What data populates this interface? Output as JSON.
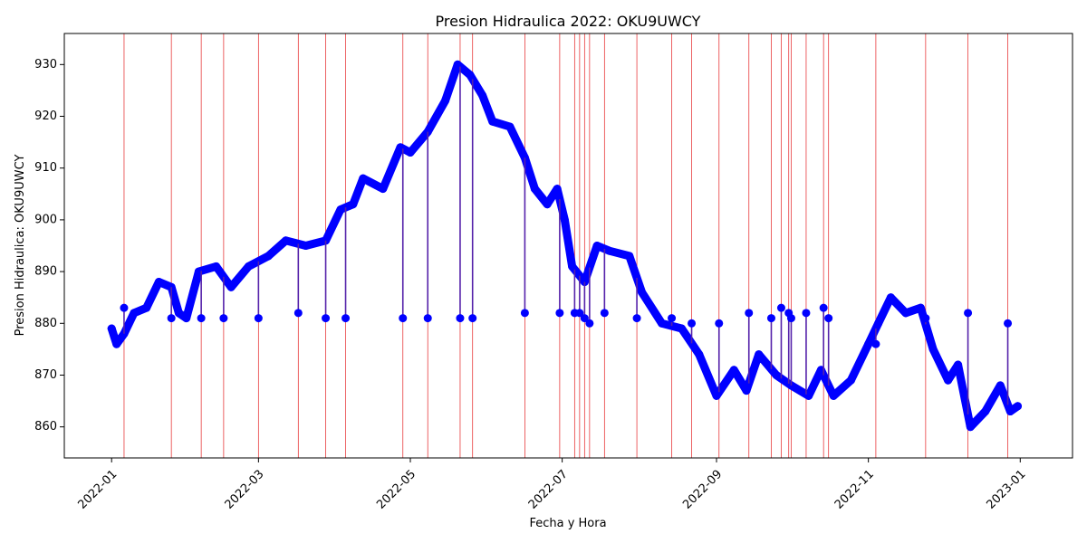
{
  "chart_data": {
    "type": "line",
    "title": "Presion Hidraulica 2022: OKU9UWCY",
    "xlabel": "Fecha y Hora",
    "ylabel": "Presion Hidraulica: OKU9UWCY",
    "xlim": [
      "2021-12-13",
      "2023-01-22"
    ],
    "ylim": [
      854,
      936
    ],
    "x_ticks": [
      "2022-01",
      "2022-03",
      "2022-05",
      "2022-07",
      "2022-09",
      "2022-11",
      "2023-01"
    ],
    "y_ticks": [
      860,
      870,
      880,
      890,
      900,
      910,
      920,
      930
    ],
    "grid": false,
    "series": [
      {
        "color": "#0000ff",
        "marker": "circle",
        "points": [
          [
            "2022-01-01",
            879
          ],
          [
            "2022-01-03",
            876
          ],
          [
            "2022-01-06",
            878
          ],
          [
            "2022-01-10",
            882
          ],
          [
            "2022-01-15",
            883
          ],
          [
            "2022-01-20",
            888
          ],
          [
            "2022-01-25",
            887
          ],
          [
            "2022-01-28",
            882
          ],
          [
            "2022-01-31",
            881
          ],
          [
            "2022-02-05",
            890
          ],
          [
            "2022-02-12",
            891
          ],
          [
            "2022-02-18",
            887
          ],
          [
            "2022-02-25",
            891
          ],
          [
            "2022-03-05",
            893
          ],
          [
            "2022-03-12",
            896
          ],
          [
            "2022-03-20",
            895
          ],
          [
            "2022-03-28",
            896
          ],
          [
            "2022-04-03",
            902
          ],
          [
            "2022-04-08",
            903
          ],
          [
            "2022-04-12",
            908
          ],
          [
            "2022-04-20",
            906
          ],
          [
            "2022-04-27",
            914
          ],
          [
            "2022-05-01",
            913
          ],
          [
            "2022-05-08",
            917
          ],
          [
            "2022-05-15",
            923
          ],
          [
            "2022-05-20",
            930
          ],
          [
            "2022-05-25",
            928
          ],
          [
            "2022-05-30",
            924
          ],
          [
            "2022-06-03",
            919
          ],
          [
            "2022-06-10",
            918
          ],
          [
            "2022-06-16",
            912
          ],
          [
            "2022-06-20",
            906
          ],
          [
            "2022-06-25",
            903
          ],
          [
            "2022-06-29",
            906
          ],
          [
            "2022-07-02",
            900
          ],
          [
            "2022-07-05",
            891
          ],
          [
            "2022-07-10",
            888
          ],
          [
            "2022-07-15",
            895
          ],
          [
            "2022-07-20",
            894
          ],
          [
            "2022-07-28",
            893
          ],
          [
            "2022-08-02",
            886
          ],
          [
            "2022-08-10",
            880
          ],
          [
            "2022-08-18",
            879
          ],
          [
            "2022-08-25",
            874
          ],
          [
            "2022-09-01",
            866
          ],
          [
            "2022-09-08",
            871
          ],
          [
            "2022-09-13",
            867
          ],
          [
            "2022-09-18",
            874
          ],
          [
            "2022-09-25",
            870
          ],
          [
            "2022-10-01",
            868
          ],
          [
            "2022-10-08",
            866
          ],
          [
            "2022-10-13",
            871
          ],
          [
            "2022-10-18",
            866
          ],
          [
            "2022-10-25",
            869
          ],
          [
            "2022-11-01",
            876
          ],
          [
            "2022-11-05",
            880
          ],
          [
            "2022-11-10",
            885
          ],
          [
            "2022-11-16",
            882
          ],
          [
            "2022-11-22",
            883
          ],
          [
            "2022-11-27",
            875
          ],
          [
            "2022-12-03",
            869
          ],
          [
            "2022-12-07",
            872
          ],
          [
            "2022-12-12",
            860
          ],
          [
            "2022-12-18",
            863
          ],
          [
            "2022-12-24",
            868
          ],
          [
            "2022-12-28",
            863
          ],
          [
            "2022-12-31",
            864
          ]
        ]
      }
    ],
    "anomalies": [
      [
        "2022-01-06",
        883
      ],
      [
        "2022-01-25",
        881
      ],
      [
        "2022-02-06",
        881
      ],
      [
        "2022-02-15",
        881
      ],
      [
        "2022-03-01",
        881
      ],
      [
        "2022-03-17",
        882
      ],
      [
        "2022-03-28",
        881
      ],
      [
        "2022-04-05",
        881
      ],
      [
        "2022-04-28",
        881
      ],
      [
        "2022-05-08",
        881
      ],
      [
        "2022-05-21",
        881
      ],
      [
        "2022-05-26",
        881
      ],
      [
        "2022-06-16",
        882
      ],
      [
        "2022-06-30",
        882
      ],
      [
        "2022-07-06",
        882
      ],
      [
        "2022-07-08",
        882
      ],
      [
        "2022-07-10",
        881
      ],
      [
        "2022-07-12",
        880
      ],
      [
        "2022-07-18",
        882
      ],
      [
        "2022-07-31",
        881
      ],
      [
        "2022-08-14",
        881
      ],
      [
        "2022-08-22",
        880
      ],
      [
        "2022-09-02",
        880
      ],
      [
        "2022-09-14",
        882
      ],
      [
        "2022-09-23",
        881
      ],
      [
        "2022-09-27",
        883
      ],
      [
        "2022-09-30",
        882
      ],
      [
        "2022-10-01",
        881
      ],
      [
        "2022-10-07",
        882
      ],
      [
        "2022-10-14",
        883
      ],
      [
        "2022-10-16",
        881
      ],
      [
        "2022-11-04",
        876
      ],
      [
        "2022-11-24",
        881
      ],
      [
        "2022-12-11",
        882
      ],
      [
        "2022-12-27",
        880
      ]
    ],
    "anomaly_line_color": "#e41a1c",
    "anomaly_stem_color": "#5522aa"
  }
}
